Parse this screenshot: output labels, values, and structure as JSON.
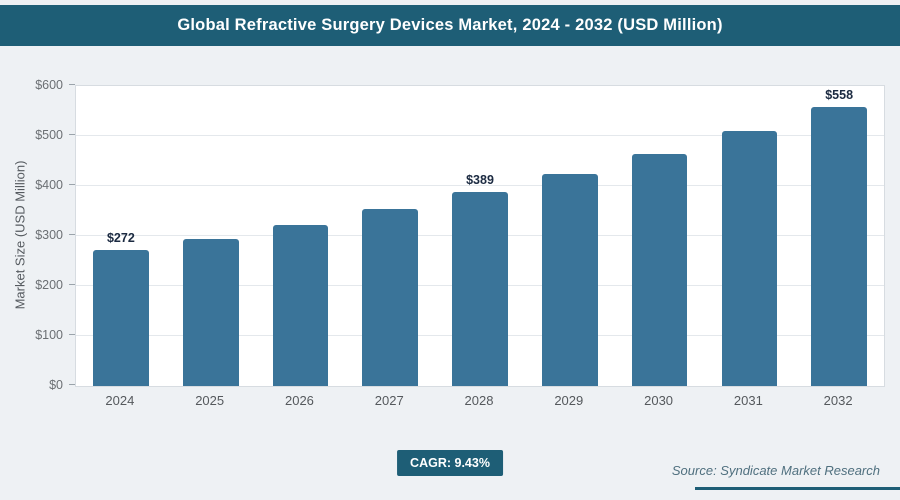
{
  "chart_data": {
    "type": "bar",
    "title": "Global Refractive Surgery Devices Market, 2024 - 2032 (USD Million)",
    "categories": [
      "2024",
      "2025",
      "2026",
      "2027",
      "2028",
      "2029",
      "2030",
      "2031",
      "2032"
    ],
    "values": [
      272,
      295,
      322,
      354,
      389,
      424,
      464,
      510,
      558
    ],
    "bar_labels": [
      "$272",
      "",
      "",
      "",
      "$389",
      "",
      "",
      "",
      "$558"
    ],
    "xlabel": "",
    "ylabel": "Market Size (USD Million)",
    "ylim": [
      0,
      600
    ],
    "yticks": [
      0,
      100,
      200,
      300,
      400,
      500,
      600
    ],
    "ytick_labels": [
      "$0",
      "$100",
      "$200",
      "$300",
      "$400",
      "$500",
      "$600"
    ],
    "grid": true,
    "legend": false
  },
  "footer": {
    "cagr_badge": "CAGR: 9.43%",
    "source": "Source: Syndicate Market Research"
  },
  "colors": {
    "banner_bg": "#1e5e76",
    "bar": "#3a7499",
    "page_bg": "#eef1f4",
    "plot_border": "#d7dce1",
    "gridline": "#e4e8ec",
    "value_label": "#1b2a41"
  }
}
